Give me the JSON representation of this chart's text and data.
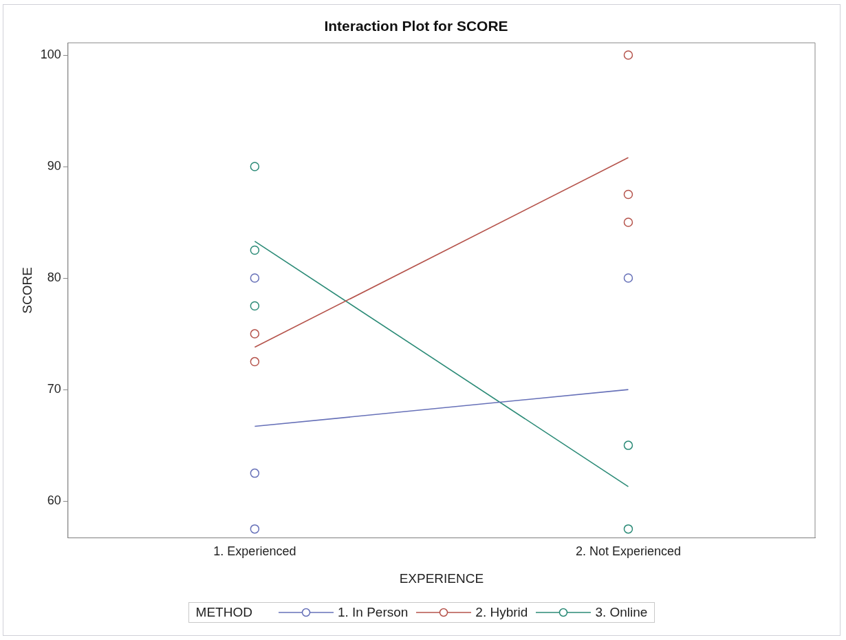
{
  "chart_data": {
    "type": "line",
    "title": "Interaction Plot for SCORE",
    "xlabel": "EXPERIENCE",
    "ylabel": "SCORE",
    "legend_title": "METHOD",
    "legend": "bottom",
    "grid": false,
    "categories": [
      "1. Experienced",
      "2. Not Experienced"
    ],
    "ylim": [
      56.7,
      101.1
    ],
    "yticks": [
      60,
      70,
      80,
      90,
      100
    ],
    "series": [
      {
        "name": "1. In Person",
        "type": "line",
        "color": "#6670b8",
        "values": [
          66.7,
          70
        ],
        "marker": "none"
      },
      {
        "name": "2. Hybrid",
        "type": "line",
        "color": "#b5534b",
        "values": [
          73.8,
          90.8
        ],
        "marker": "none"
      },
      {
        "name": "3. Online",
        "type": "line",
        "color": "#2a8a76",
        "values": [
          83.3,
          61.3
        ],
        "marker": "none"
      },
      {
        "type": "scatter",
        "color": "#6670b8",
        "marker": "circle",
        "x": [
          "1. Experienced",
          "1. Experienced",
          "1. Experienced",
          "2. Not Experienced"
        ],
        "values": [
          80,
          62.5,
          57.5,
          80
        ]
      },
      {
        "type": "scatter",
        "color": "#b5534b",
        "marker": "circle",
        "x": [
          "1. Experienced",
          "1. Experienced",
          "2. Not Experienced",
          "2. Not Experienced",
          "2. Not Experienced"
        ],
        "values": [
          75,
          72.5,
          100,
          87.5,
          85
        ]
      },
      {
        "type": "scatter",
        "color": "#2a8a76",
        "marker": "circle",
        "x": [
          "1. Experienced",
          "1. Experienced",
          "1. Experienced",
          "2. Not Experienced",
          "2. Not Experienced"
        ],
        "values": [
          90,
          82.5,
          77.5,
          65,
          57.5
        ]
      }
    ]
  }
}
